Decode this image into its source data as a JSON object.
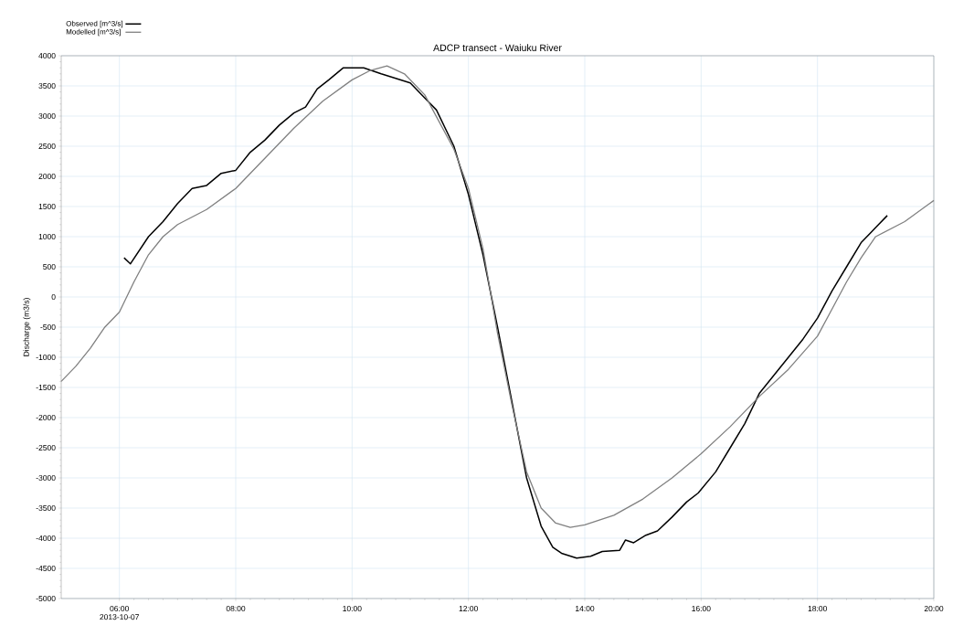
{
  "chart_data": {
    "type": "line",
    "title": "ADCP transect - Waiuku River",
    "ylabel": "Discharge (m3/s)",
    "annotations": [
      "2013-10-07"
    ],
    "xlim": [
      5,
      20
    ],
    "ylim": [
      -5000,
      4000
    ],
    "xticks": [
      {
        "value": 6,
        "label": "06:00"
      },
      {
        "value": 8,
        "label": "08:00"
      },
      {
        "value": 10,
        "label": "10:00"
      },
      {
        "value": 12,
        "label": "12:00"
      },
      {
        "value": 14,
        "label": "14:00"
      },
      {
        "value": 16,
        "label": "16:00"
      },
      {
        "value": 18,
        "label": "18:00"
      },
      {
        "value": 20,
        "label": "20:00"
      }
    ],
    "yticks": [
      -5000,
      -4500,
      -4000,
      -3500,
      -3000,
      -2500,
      -2000,
      -1500,
      -1000,
      -500,
      0,
      500,
      1000,
      1500,
      2000,
      2500,
      3000,
      3500,
      4000
    ],
    "grid": true,
    "legend": "top left",
    "line_style": "solid",
    "series": [
      {
        "name": "Observed [m^3/s]",
        "color": "#000000",
        "x": [
          6.08,
          6.19,
          6.5,
          6.75,
          7.0,
          7.25,
          7.5,
          7.75,
          8.0,
          8.25,
          8.5,
          8.75,
          9.0,
          9.2,
          9.4,
          9.6,
          9.85,
          10.2,
          10.5,
          11.0,
          11.25,
          11.45,
          11.75,
          12.0,
          12.25,
          12.5,
          12.6,
          12.8,
          13.0,
          13.25,
          13.45,
          13.6,
          13.86,
          14.1,
          14.3,
          14.6,
          14.7,
          14.84,
          15.05,
          15.25,
          15.5,
          15.75,
          15.95,
          16.25,
          16.5,
          16.75,
          17.0,
          17.25,
          17.5,
          17.75,
          18.0,
          18.25,
          18.5,
          18.75,
          19.0,
          19.2
        ],
        "values": [
          650,
          550,
          1000,
          1250,
          1550,
          1800,
          1850,
          2050,
          2100,
          2400,
          2600,
          2850,
          3050,
          3150,
          3450,
          3600,
          3800,
          3800,
          3700,
          3550,
          3300,
          3100,
          2500,
          1700,
          700,
          -500,
          -1000,
          -2000,
          -3000,
          -3800,
          -4150,
          -4250,
          -4330,
          -4300,
          -4220,
          -4200,
          -4030,
          -4075,
          -3950,
          -3880,
          -3650,
          -3400,
          -3250,
          -2900,
          -2500,
          -2100,
          -1600,
          -1300,
          -1000,
          -700,
          -350,
          100,
          500,
          900,
          1150,
          1350
        ]
      },
      {
        "name": "Modelled  [m^3/s]",
        "color": "#808080",
        "x": [
          5.0,
          5.25,
          5.5,
          5.75,
          6.0,
          6.25,
          6.5,
          6.75,
          7.0,
          7.5,
          8.0,
          8.5,
          9.0,
          9.5,
          10.0,
          10.3,
          10.6,
          10.9,
          11.25,
          11.5,
          11.75,
          12.0,
          12.25,
          12.5,
          12.75,
          13.0,
          13.25,
          13.5,
          13.75,
          14.0,
          14.5,
          15.0,
          15.5,
          16.0,
          16.5,
          17.0,
          17.5,
          18.0,
          18.25,
          18.5,
          18.75,
          19.0,
          19.5,
          20.0
        ],
        "values": [
          -1400,
          -1150,
          -850,
          -500,
          -250,
          250,
          700,
          1000,
          1200,
          1450,
          1800,
          2300,
          2800,
          3250,
          3600,
          3750,
          3830,
          3700,
          3350,
          2900,
          2450,
          1800,
          800,
          -600,
          -1800,
          -2900,
          -3500,
          -3750,
          -3820,
          -3780,
          -3620,
          -3350,
          -3000,
          -2600,
          -2150,
          -1650,
          -1200,
          -650,
          -200,
          250,
          650,
          1000,
          1250,
          1600
        ]
      }
    ]
  }
}
